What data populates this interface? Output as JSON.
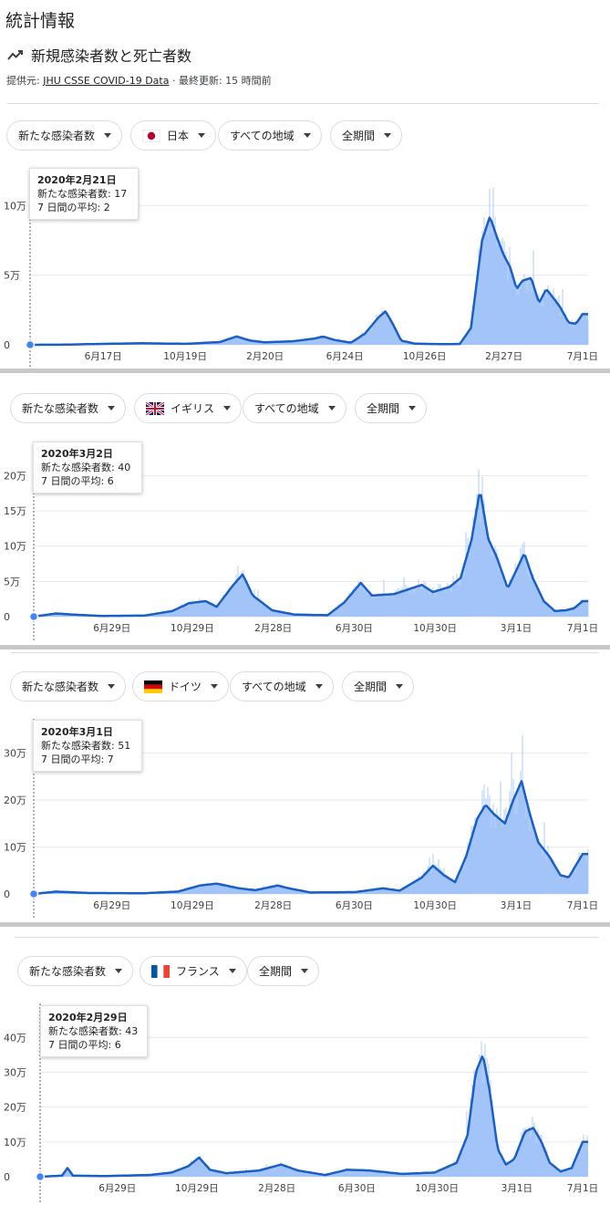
{
  "title": "統計情報",
  "subtitle": "新規感染者数と死亡者数",
  "source": {
    "prefix": "提供元: ",
    "link": "JHU CSSE COVID-19 Data",
    "updated": " · 最終更新: 15 時間前"
  },
  "filters": {
    "metric": "新たな感染者数",
    "region": "すべての地域",
    "period": "全期間"
  },
  "colors": {
    "line": "#1a5fc4",
    "fill": "#aecbfa",
    "bar": "#8fb6f2",
    "grid": "#e8eaed"
  },
  "chart_data": [
    {
      "type": "area",
      "country": "日本",
      "flag": "japan-flag-icon",
      "tooltip": {
        "date": "2020年2月21日",
        "cases": "新たな感染者数: 17",
        "avg": "7 日間の平均: 2"
      },
      "ylim": [
        0,
        110000
      ],
      "yticks": [
        0,
        50000,
        100000
      ],
      "ytick_labels": [
        "0",
        "5万",
        "10万"
      ],
      "xtick_labels": [
        "6月17日",
        "10月19日",
        "2月20日",
        "6月24日",
        "10月26日",
        "2月27日",
        "7月1日"
      ],
      "xticks": [
        0.131,
        0.278,
        0.421,
        0.564,
        0.707,
        0.849,
        0.99
      ],
      "series": [
        {
          "x": 0,
          "y": 0
        },
        {
          "x": 0.06,
          "y": 100
        },
        {
          "x": 0.12,
          "y": 600
        },
        {
          "x": 0.2,
          "y": 1100
        },
        {
          "x": 0.28,
          "y": 700
        },
        {
          "x": 0.34,
          "y": 2000
        },
        {
          "x": 0.37,
          "y": 6000
        },
        {
          "x": 0.395,
          "y": 3000
        },
        {
          "x": 0.42,
          "y": 1800
        },
        {
          "x": 0.47,
          "y": 2500
        },
        {
          "x": 0.51,
          "y": 4500
        },
        {
          "x": 0.525,
          "y": 6000
        },
        {
          "x": 0.545,
          "y": 3500
        },
        {
          "x": 0.575,
          "y": 1500
        },
        {
          "x": 0.6,
          "y": 8000
        },
        {
          "x": 0.625,
          "y": 20000
        },
        {
          "x": 0.637,
          "y": 24000
        },
        {
          "x": 0.65,
          "y": 15000
        },
        {
          "x": 0.665,
          "y": 3000
        },
        {
          "x": 0.69,
          "y": 800
        },
        {
          "x": 0.74,
          "y": 500
        },
        {
          "x": 0.77,
          "y": 600
        },
        {
          "x": 0.79,
          "y": 12000
        },
        {
          "x": 0.81,
          "y": 75000
        },
        {
          "x": 0.824,
          "y": 92000
        },
        {
          "x": 0.836,
          "y": 78000
        },
        {
          "x": 0.848,
          "y": 65000
        },
        {
          "x": 0.86,
          "y": 56000
        },
        {
          "x": 0.872,
          "y": 40000
        },
        {
          "x": 0.882,
          "y": 46000
        },
        {
          "x": 0.898,
          "y": 48000
        },
        {
          "x": 0.912,
          "y": 30000
        },
        {
          "x": 0.925,
          "y": 40000
        },
        {
          "x": 0.937,
          "y": 34000
        },
        {
          "x": 0.95,
          "y": 27000
        },
        {
          "x": 0.965,
          "y": 16000
        },
        {
          "x": 0.978,
          "y": 15000
        },
        {
          "x": 0.99,
          "y": 22000
        }
      ]
    },
    {
      "type": "area",
      "country": "イギリス",
      "flag": "uk-flag-icon",
      "tooltip": {
        "date": "2020年3月2日",
        "cases": "新たな感染者数: 40",
        "avg": "7 日間の平均: 6"
      },
      "ylim": [
        0,
        220000
      ],
      "yticks": [
        0,
        50000,
        100000,
        150000,
        200000
      ],
      "ytick_labels": [
        "0",
        "5万",
        "10万",
        "15万",
        "20万"
      ],
      "xtick_labels": [
        "6月29日",
        "10月29日",
        "2月28日",
        "6月30日",
        "10月30日",
        "3月1日",
        "7月1日"
      ],
      "xticks": [
        0.141,
        0.286,
        0.432,
        0.578,
        0.724,
        0.87,
        0.99
      ],
      "series": [
        {
          "x": 0,
          "y": 0
        },
        {
          "x": 0.04,
          "y": 4500
        },
        {
          "x": 0.07,
          "y": 3000
        },
        {
          "x": 0.12,
          "y": 1000
        },
        {
          "x": 0.2,
          "y": 1500
        },
        {
          "x": 0.25,
          "y": 8000
        },
        {
          "x": 0.28,
          "y": 19000
        },
        {
          "x": 0.31,
          "y": 22000
        },
        {
          "x": 0.33,
          "y": 14000
        },
        {
          "x": 0.36,
          "y": 45000
        },
        {
          "x": 0.377,
          "y": 60000
        },
        {
          "x": 0.395,
          "y": 30000
        },
        {
          "x": 0.43,
          "y": 9000
        },
        {
          "x": 0.47,
          "y": 3000
        },
        {
          "x": 0.53,
          "y": 2000
        },
        {
          "x": 0.56,
          "y": 20000
        },
        {
          "x": 0.59,
          "y": 48000
        },
        {
          "x": 0.61,
          "y": 30000
        },
        {
          "x": 0.65,
          "y": 32000
        },
        {
          "x": 0.7,
          "y": 45000
        },
        {
          "x": 0.72,
          "y": 35000
        },
        {
          "x": 0.75,
          "y": 42000
        },
        {
          "x": 0.77,
          "y": 55000
        },
        {
          "x": 0.79,
          "y": 110000
        },
        {
          "x": 0.805,
          "y": 180000
        },
        {
          "x": 0.82,
          "y": 110000
        },
        {
          "x": 0.835,
          "y": 85000
        },
        {
          "x": 0.855,
          "y": 40000
        },
        {
          "x": 0.87,
          "y": 65000
        },
        {
          "x": 0.885,
          "y": 90000
        },
        {
          "x": 0.9,
          "y": 55000
        },
        {
          "x": 0.92,
          "y": 22000
        },
        {
          "x": 0.94,
          "y": 8000
        },
        {
          "x": 0.96,
          "y": 9000
        },
        {
          "x": 0.975,
          "y": 12000
        },
        {
          "x": 0.99,
          "y": 22000
        }
      ]
    },
    {
      "type": "area",
      "country": "ドイツ",
      "flag": "germany-flag-icon",
      "tooltip": {
        "date": "2020年3月1日",
        "cases": "新たな感染者数: 51",
        "avg": "7 日間の平均: 7"
      },
      "ylim": [
        0,
        330000
      ],
      "yticks": [
        0,
        100000,
        200000,
        300000
      ],
      "ytick_labels": [
        "0",
        "10万",
        "20万",
        "30万"
      ],
      "xtick_labels": [
        "6月29日",
        "10月29日",
        "2月28日",
        "6月30日",
        "10月30日",
        "3月1日",
        "7月1日"
      ],
      "xticks": [
        0.141,
        0.286,
        0.432,
        0.578,
        0.724,
        0.87,
        0.99
      ],
      "series": [
        {
          "x": 0,
          "y": 0
        },
        {
          "x": 0.04,
          "y": 5000
        },
        {
          "x": 0.1,
          "y": 2000
        },
        {
          "x": 0.2,
          "y": 1500
        },
        {
          "x": 0.26,
          "y": 5000
        },
        {
          "x": 0.3,
          "y": 18000
        },
        {
          "x": 0.33,
          "y": 22000
        },
        {
          "x": 0.37,
          "y": 12000
        },
        {
          "x": 0.4,
          "y": 8000
        },
        {
          "x": 0.44,
          "y": 18000
        },
        {
          "x": 0.46,
          "y": 12000
        },
        {
          "x": 0.5,
          "y": 3000
        },
        {
          "x": 0.58,
          "y": 4000
        },
        {
          "x": 0.63,
          "y": 12000
        },
        {
          "x": 0.66,
          "y": 7000
        },
        {
          "x": 0.7,
          "y": 35000
        },
        {
          "x": 0.72,
          "y": 60000
        },
        {
          "x": 0.74,
          "y": 40000
        },
        {
          "x": 0.76,
          "y": 25000
        },
        {
          "x": 0.78,
          "y": 80000
        },
        {
          "x": 0.8,
          "y": 160000
        },
        {
          "x": 0.815,
          "y": 190000
        },
        {
          "x": 0.83,
          "y": 170000
        },
        {
          "x": 0.85,
          "y": 150000
        },
        {
          "x": 0.865,
          "y": 200000
        },
        {
          "x": 0.88,
          "y": 240000
        },
        {
          "x": 0.895,
          "y": 170000
        },
        {
          "x": 0.91,
          "y": 110000
        },
        {
          "x": 0.93,
          "y": 80000
        },
        {
          "x": 0.95,
          "y": 40000
        },
        {
          "x": 0.965,
          "y": 35000
        },
        {
          "x": 0.98,
          "y": 65000
        },
        {
          "x": 0.99,
          "y": 85000
        }
      ]
    },
    {
      "type": "area",
      "country": "フランス",
      "flag": "france-flag-icon",
      "tooltip": {
        "date": "2020年2月29日",
        "cases": "新たな感染者数: 43",
        "avg": "7 日間の平均: 6"
      },
      "ylim": [
        0,
        440000
      ],
      "yticks": [
        0,
        100000,
        200000,
        300000,
        400000
      ],
      "ytick_labels": [
        "0",
        "10万",
        "20万",
        "30万",
        "40万"
      ],
      "xtick_labels": [
        "6月29日",
        "10月29日",
        "2月28日",
        "6月30日",
        "10月30日",
        "3月1日",
        "7月1日"
      ],
      "xticks": [
        0.141,
        0.286,
        0.432,
        0.578,
        0.724,
        0.87,
        0.99
      ],
      "series": [
        {
          "x": 0,
          "y": 0
        },
        {
          "x": 0.04,
          "y": 3000
        },
        {
          "x": 0.05,
          "y": 25000
        },
        {
          "x": 0.06,
          "y": 3000
        },
        {
          "x": 0.12,
          "y": 2000
        },
        {
          "x": 0.2,
          "y": 5000
        },
        {
          "x": 0.24,
          "y": 12000
        },
        {
          "x": 0.27,
          "y": 30000
        },
        {
          "x": 0.29,
          "y": 55000
        },
        {
          "x": 0.31,
          "y": 20000
        },
        {
          "x": 0.34,
          "y": 10000
        },
        {
          "x": 0.4,
          "y": 18000
        },
        {
          "x": 0.44,
          "y": 35000
        },
        {
          "x": 0.47,
          "y": 18000
        },
        {
          "x": 0.52,
          "y": 5000
        },
        {
          "x": 0.56,
          "y": 20000
        },
        {
          "x": 0.6,
          "y": 18000
        },
        {
          "x": 0.66,
          "y": 8000
        },
        {
          "x": 0.72,
          "y": 12000
        },
        {
          "x": 0.76,
          "y": 40000
        },
        {
          "x": 0.78,
          "y": 120000
        },
        {
          "x": 0.795,
          "y": 300000
        },
        {
          "x": 0.808,
          "y": 350000
        },
        {
          "x": 0.82,
          "y": 250000
        },
        {
          "x": 0.835,
          "y": 80000
        },
        {
          "x": 0.85,
          "y": 35000
        },
        {
          "x": 0.865,
          "y": 50000
        },
        {
          "x": 0.885,
          "y": 130000
        },
        {
          "x": 0.9,
          "y": 140000
        },
        {
          "x": 0.915,
          "y": 100000
        },
        {
          "x": 0.93,
          "y": 40000
        },
        {
          "x": 0.95,
          "y": 15000
        },
        {
          "x": 0.97,
          "y": 25000
        },
        {
          "x": 0.99,
          "y": 100000
        }
      ]
    }
  ]
}
